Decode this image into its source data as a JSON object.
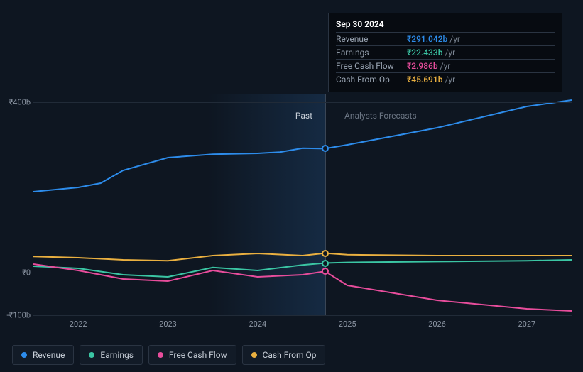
{
  "chart": {
    "background_color": "#0e1621",
    "grid_color": "#212b38",
    "divider_color": "#3a4656",
    "axis_label_color": "#8a94a2",
    "section_past_label": "Past",
    "section_forecast_label": "Analysts Forecasts",
    "currency_prefix": "₹",
    "y_axis": {
      "min": -100,
      "max": 420,
      "ticks": [
        {
          "value": 400,
          "label": "₹400b"
        },
        {
          "value": 0,
          "label": "₹0"
        },
        {
          "value": -100,
          "label": "-₹100b"
        }
      ]
    },
    "x_axis": {
      "min": 2021.5,
      "max": 2027.5,
      "divider": 2024.75,
      "ticks": [
        {
          "value": 2022,
          "label": "2022"
        },
        {
          "value": 2023,
          "label": "2023"
        },
        {
          "value": 2024,
          "label": "2024"
        },
        {
          "value": 2025,
          "label": "2025"
        },
        {
          "value": 2026,
          "label": "2026"
        },
        {
          "value": 2027,
          "label": "2027"
        }
      ]
    },
    "series": [
      {
        "name": "Revenue",
        "color": "#2d8ceb",
        "line_width": 2,
        "points": [
          [
            2021.5,
            190
          ],
          [
            2022.0,
            200
          ],
          [
            2022.25,
            210
          ],
          [
            2022.5,
            240
          ],
          [
            2023.0,
            270
          ],
          [
            2023.5,
            278
          ],
          [
            2024.0,
            280
          ],
          [
            2024.25,
            283
          ],
          [
            2024.5,
            292
          ],
          [
            2024.75,
            291.042
          ],
          [
            2025.0,
            300
          ],
          [
            2026.0,
            340
          ],
          [
            2027.0,
            390
          ],
          [
            2027.5,
            405
          ]
        ]
      },
      {
        "name": "Cash From Op",
        "color": "#eab040",
        "line_width": 2,
        "points": [
          [
            2021.5,
            38
          ],
          [
            2022.0,
            35
          ],
          [
            2022.5,
            30
          ],
          [
            2023.0,
            28
          ],
          [
            2023.5,
            40
          ],
          [
            2024.0,
            45
          ],
          [
            2024.5,
            40
          ],
          [
            2024.75,
            45.691
          ],
          [
            2025.0,
            42
          ],
          [
            2026.0,
            40
          ],
          [
            2027.0,
            40
          ],
          [
            2027.5,
            40
          ]
        ]
      },
      {
        "name": "Earnings",
        "color": "#3bc6a4",
        "line_width": 2,
        "points": [
          [
            2021.5,
            15
          ],
          [
            2022.0,
            10
          ],
          [
            2022.5,
            -5
          ],
          [
            2023.0,
            -10
          ],
          [
            2023.5,
            12
          ],
          [
            2024.0,
            5
          ],
          [
            2024.5,
            18
          ],
          [
            2024.75,
            22.433
          ],
          [
            2025.0,
            24
          ],
          [
            2026.0,
            26
          ],
          [
            2027.0,
            28
          ],
          [
            2027.5,
            30
          ]
        ]
      },
      {
        "name": "Free Cash Flow",
        "color": "#e84d9c",
        "line_width": 2,
        "points": [
          [
            2021.5,
            20
          ],
          [
            2022.0,
            5
          ],
          [
            2022.5,
            -15
          ],
          [
            2023.0,
            -20
          ],
          [
            2023.5,
            5
          ],
          [
            2024.0,
            -10
          ],
          [
            2024.5,
            -5
          ],
          [
            2024.75,
            2.986
          ],
          [
            2025.0,
            -30
          ],
          [
            2026.0,
            -65
          ],
          [
            2027.0,
            -85
          ],
          [
            2027.5,
            -90
          ]
        ]
      }
    ],
    "markers_x": 2024.75
  },
  "tooltip": {
    "date": "Sep 30 2024",
    "unit": "/yr",
    "rows": [
      {
        "label": "Revenue",
        "value": "₹291.042b",
        "color": "#2d8ceb"
      },
      {
        "label": "Earnings",
        "value": "₹22.433b",
        "color": "#3bc6a4"
      },
      {
        "label": "Free Cash Flow",
        "value": "₹2.986b",
        "color": "#e84d9c"
      },
      {
        "label": "Cash From Op",
        "value": "₹45.691b",
        "color": "#eab040"
      }
    ]
  },
  "legend": [
    {
      "label": "Revenue",
      "color": "#2d8ceb"
    },
    {
      "label": "Earnings",
      "color": "#3bc6a4"
    },
    {
      "label": "Free Cash Flow",
      "color": "#e84d9c"
    },
    {
      "label": "Cash From Op",
      "color": "#eab040"
    }
  ]
}
